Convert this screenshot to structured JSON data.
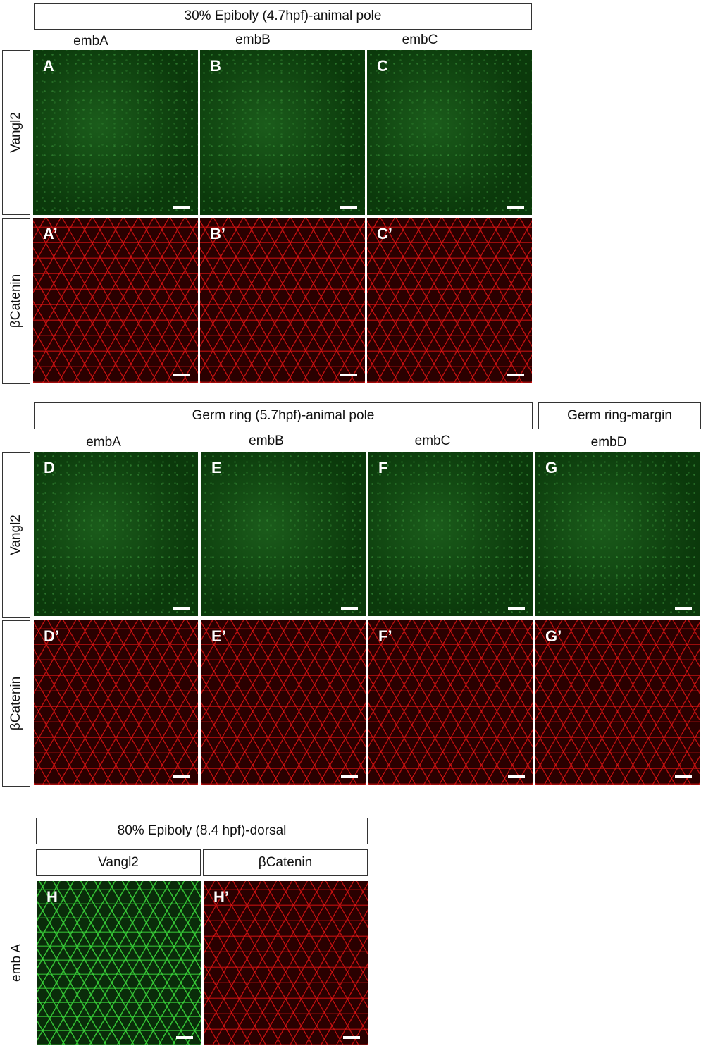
{
  "section1": {
    "title": "30% Epiboly (4.7hpf)-animal pole",
    "columns": [
      "embA",
      "embB",
      "embC"
    ],
    "rows": [
      "Vangl2",
      "βCatenin"
    ],
    "panels_top": [
      "A",
      "B",
      "C"
    ],
    "panels_bottom": [
      "A’",
      "B’",
      "C’"
    ]
  },
  "section2": {
    "title": "Germ ring (5.7hpf)-animal pole",
    "title_margin": "Germ ring-margin",
    "columns": [
      "embA",
      "embB",
      "embC",
      "embD"
    ],
    "rows": [
      "Vangl2",
      "βCatenin"
    ],
    "panels_top": [
      "D",
      "E",
      "F",
      "G"
    ],
    "panels_bottom": [
      "D’",
      "E’",
      "F’",
      "G’"
    ]
  },
  "section3": {
    "title": "80% Epiboly (8.4 hpf)-dorsal",
    "columns": [
      "Vangl2",
      "βCatenin"
    ],
    "row": "emb A",
    "panels": [
      "H",
      "H’"
    ]
  },
  "colors": {
    "vangl2": "#2fae2f",
    "catenin": "#e01818"
  }
}
